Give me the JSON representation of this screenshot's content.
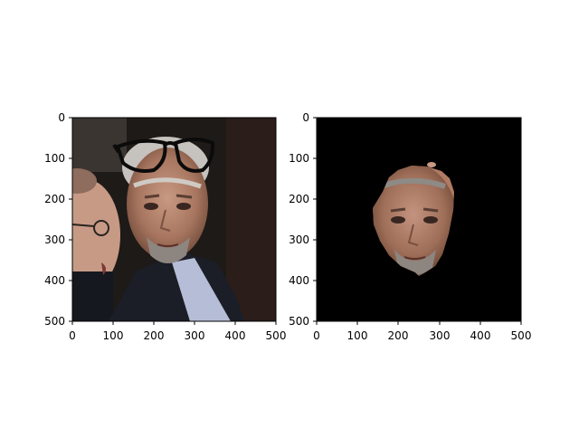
{
  "figure": {
    "background": "#ffffff"
  },
  "panels": [
    {
      "name": "original-image-with-glasses-overlay",
      "content": "photo",
      "xlim": [
        0,
        500
      ],
      "ylim": [
        500,
        0
      ],
      "x_ticks": [
        "0",
        "100",
        "200",
        "300",
        "400",
        "500"
      ],
      "y_ticks": [
        "0",
        "100",
        "200",
        "300",
        "400",
        "500"
      ],
      "overlay_icon": "glasses-icon"
    },
    {
      "name": "face-mask-result",
      "content": "masked-photo",
      "background": "#000000",
      "xlim": [
        0,
        500
      ],
      "ylim": [
        500,
        0
      ],
      "x_ticks": [
        "0",
        "100",
        "200",
        "300",
        "400",
        "500"
      ],
      "y_ticks": [
        "0",
        "100",
        "200",
        "300",
        "400",
        "500"
      ]
    }
  ]
}
